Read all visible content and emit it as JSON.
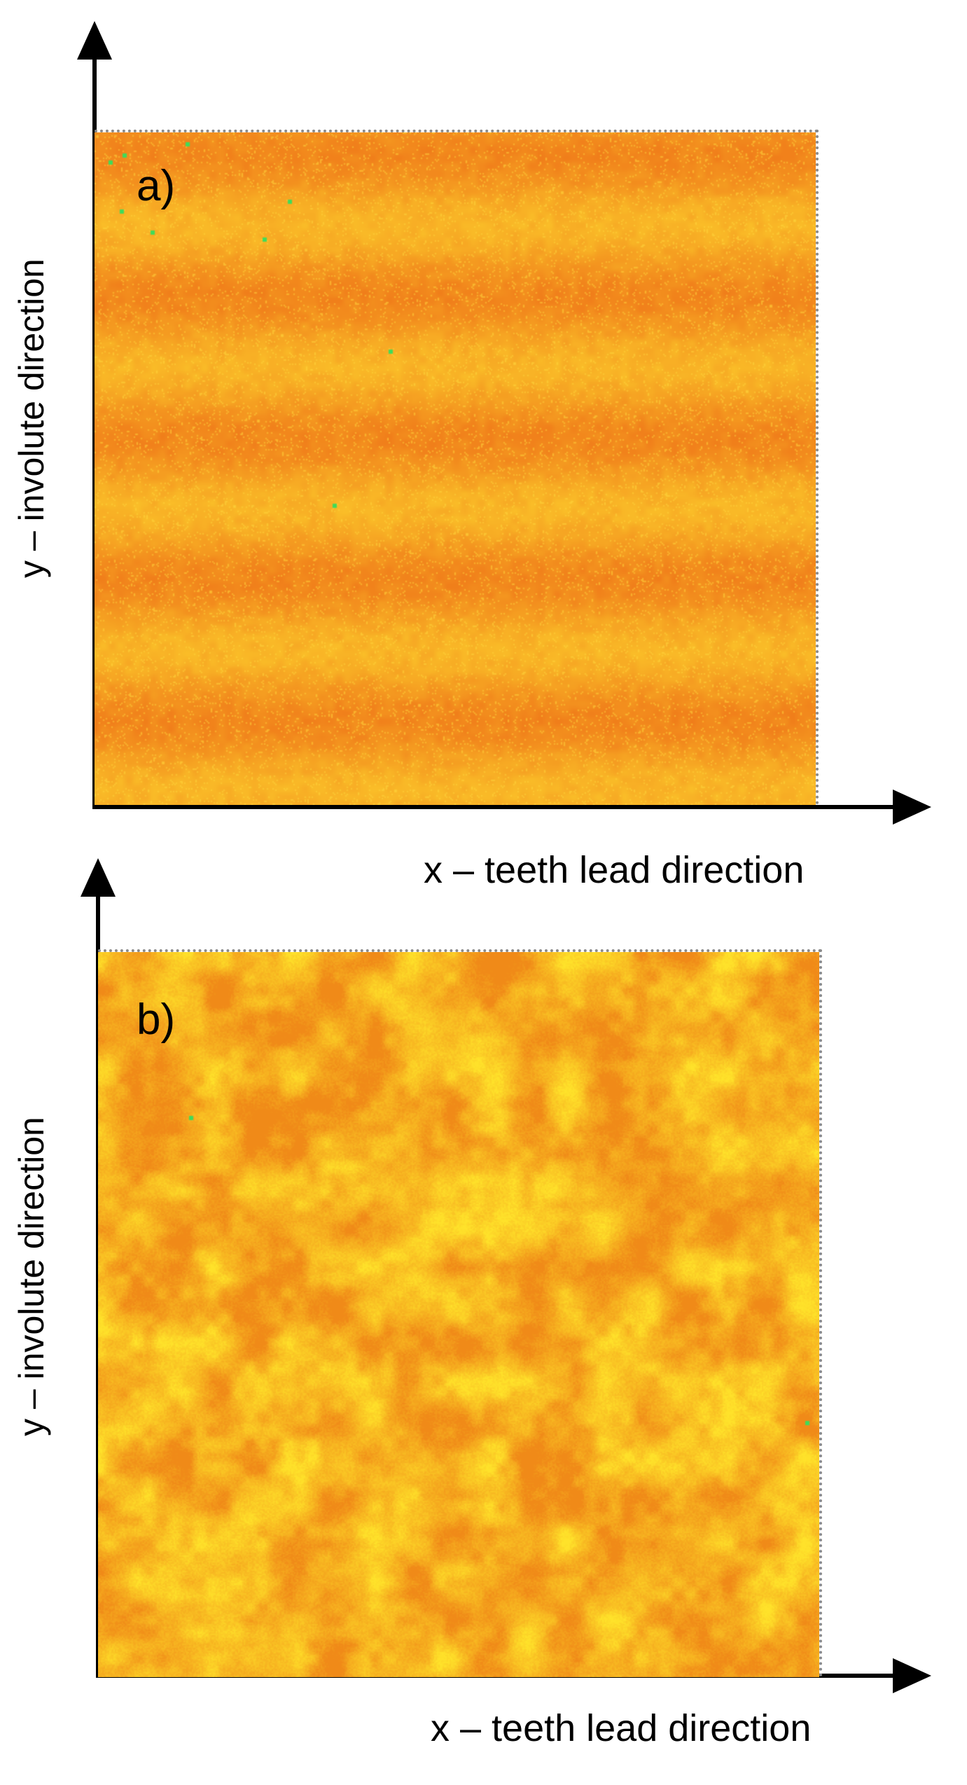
{
  "panels": [
    {
      "label": "a)",
      "y_axis_label": "y – involute direction",
      "x_axis_label": "x – teeth lead direction"
    },
    {
      "label": "b)",
      "y_axis_label": "y – involute direction",
      "x_axis_label": "x – teeth lead direction"
    }
  ],
  "colors": {
    "map_base_a": "#f5a020",
    "map_band_a": "#f07d1a",
    "map_base_b": "#f7b81e",
    "map_dark_b": "#f08a18",
    "map_light_b": "#ffe22a",
    "speck": "#3ddc5a",
    "axis": "#000000"
  }
}
